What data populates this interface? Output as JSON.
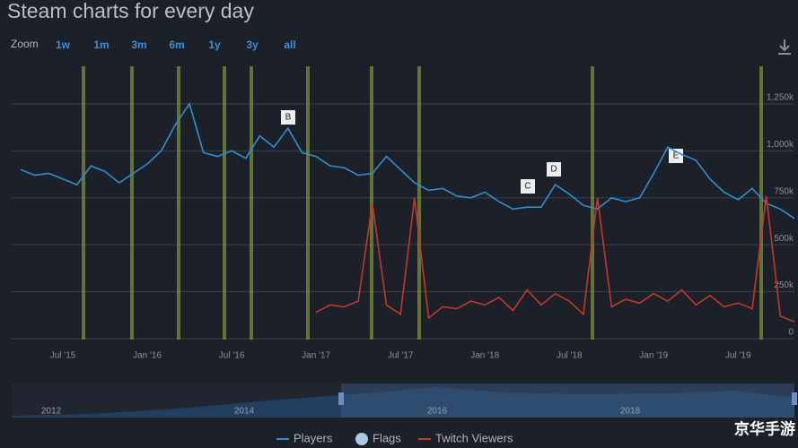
{
  "chart_data": {
    "type": "line",
    "title": "Steam charts for every day",
    "zoom_label": "Zoom",
    "zoom_buttons": [
      "1w",
      "1m",
      "3m",
      "6m",
      "1y",
      "3y",
      "all"
    ],
    "categories": [
      null,
      null,
      null,
      "Jul '15",
      null,
      null,
      null,
      null,
      null,
      "Jan '16",
      null,
      null,
      null,
      null,
      null,
      "Jul '16",
      null,
      null,
      null,
      null,
      null,
      "Jan '17",
      null,
      null,
      null,
      null,
      null,
      "Jul '17",
      null,
      null,
      null,
      null,
      null,
      "Jan '18",
      null,
      null,
      null,
      null,
      null,
      "Jul '18",
      null,
      null,
      null,
      null,
      null,
      "Jan '19",
      null,
      null,
      null,
      null,
      null,
      "Jul '19",
      null,
      null,
      null,
      null
    ],
    "series": [
      {
        "name": "Players",
        "color": "#2f8fd0",
        "values": [
          900000,
          870000,
          880000,
          850000,
          820000,
          920000,
          890000,
          830000,
          880000,
          930000,
          1000000,
          1140000,
          1250000,
          990000,
          970000,
          1000000,
          960000,
          1080000,
          1020000,
          1120000,
          990000,
          970000,
          920000,
          910000,
          870000,
          880000,
          970000,
          900000,
          830000,
          790000,
          800000,
          760000,
          750000,
          780000,
          730000,
          690000,
          700000,
          700000,
          820000,
          770000,
          710000,
          690000,
          750000,
          730000,
          750000,
          880000,
          1020000,
          980000,
          950000,
          850000,
          780000,
          740000,
          800000,
          720000,
          690000,
          640000
        ]
      },
      {
        "name": "Twitch Viewers",
        "color": "#c0392b",
        "values": [
          null,
          null,
          null,
          null,
          null,
          null,
          null,
          null,
          null,
          null,
          null,
          null,
          null,
          null,
          null,
          null,
          null,
          null,
          null,
          null,
          null,
          140000,
          180000,
          170000,
          200000,
          720000,
          180000,
          130000,
          750000,
          110000,
          170000,
          160000,
          200000,
          180000,
          220000,
          150000,
          260000,
          180000,
          240000,
          200000,
          130000,
          750000,
          170000,
          210000,
          190000,
          240000,
          200000,
          260000,
          180000,
          230000,
          170000,
          190000,
          160000,
          760000,
          120000,
          90000
        ]
      }
    ],
    "flags_label": "Flags",
    "annotations": [
      "B",
      "C",
      "D",
      "E"
    ],
    "ylim": [
      0,
      1450000
    ],
    "yticks": [
      0,
      {
        "value": 250000,
        "label": "250k"
      },
      {
        "value": 500000,
        "label": "500k"
      },
      {
        "value": 750000,
        "label": "750k"
      },
      {
        "value": 1000000,
        "label": "1,000k"
      },
      {
        "value": 1250000,
        "label": "1,250k"
      }
    ],
    "grid": true,
    "navigator_labels": [
      "2012",
      "2014",
      "2016",
      "2018"
    ],
    "watermark": "京华手游"
  }
}
